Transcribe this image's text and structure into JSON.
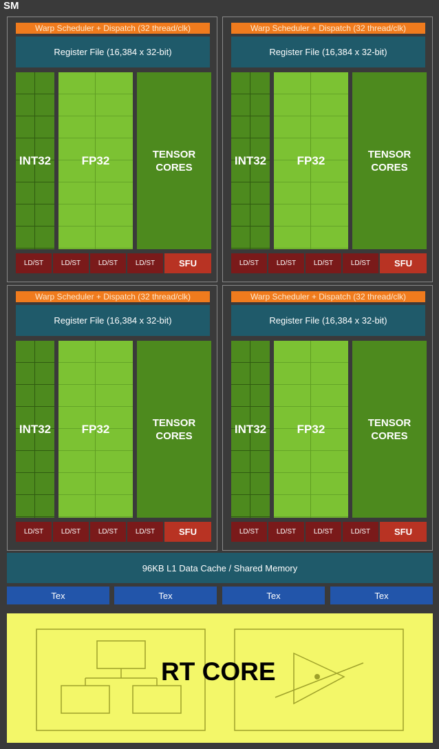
{
  "sm_label": "SM",
  "partitions": [
    {
      "warp": "Warp Scheduler + Dispatch (32 thread/clk)",
      "regfile": "Register File (16,384 x 32-bit)",
      "int32": "INT32",
      "fp32": "FP32",
      "tensor_line1": "TENSOR",
      "tensor_line2": "CORES",
      "ldst": [
        "LD/ST",
        "LD/ST",
        "LD/ST",
        "LD/ST"
      ],
      "sfu": "SFU"
    },
    {
      "warp": "Warp Scheduler + Dispatch (32 thread/clk)",
      "regfile": "Register File (16,384 x 32-bit)",
      "int32": "INT32",
      "fp32": "FP32",
      "tensor_line1": "TENSOR",
      "tensor_line2": "CORES",
      "ldst": [
        "LD/ST",
        "LD/ST",
        "LD/ST",
        "LD/ST"
      ],
      "sfu": "SFU"
    },
    {
      "warp": "Warp Scheduler + Dispatch (32 thread/clk)",
      "regfile": "Register File (16,384 x 32-bit)",
      "int32": "INT32",
      "fp32": "FP32",
      "tensor_line1": "TENSOR",
      "tensor_line2": "CORES",
      "ldst": [
        "LD/ST",
        "LD/ST",
        "LD/ST",
        "LD/ST"
      ],
      "sfu": "SFU"
    },
    {
      "warp": "Warp Scheduler + Dispatch (32 thread/clk)",
      "regfile": "Register File (16,384 x 32-bit)",
      "int32": "INT32",
      "fp32": "FP32",
      "tensor_line1": "TENSOR",
      "tensor_line2": "CORES",
      "ldst": [
        "LD/ST",
        "LD/ST",
        "LD/ST",
        "LD/ST"
      ],
      "sfu": "SFU"
    }
  ],
  "l1_cache": "96KB L1 Data Cache / Shared Memory",
  "tex_units": [
    "Tex",
    "Tex",
    "Tex",
    "Tex"
  ],
  "rt_core": "RT CORE",
  "colors": {
    "background": "#3a3a3a",
    "warp_scheduler": "#f07b1d",
    "register_file": "#1f5a6a",
    "int32": "#4d8a1e",
    "fp32": "#7cc233",
    "tensor": "#4d8a1e",
    "ldst": "#7a1a1a",
    "sfu": "#b83323",
    "tex": "#2255aa",
    "rt_core": "#f3f769"
  },
  "icons": [
    "bvh-tree-icon",
    "ray-triangle-intersection-icon"
  ]
}
